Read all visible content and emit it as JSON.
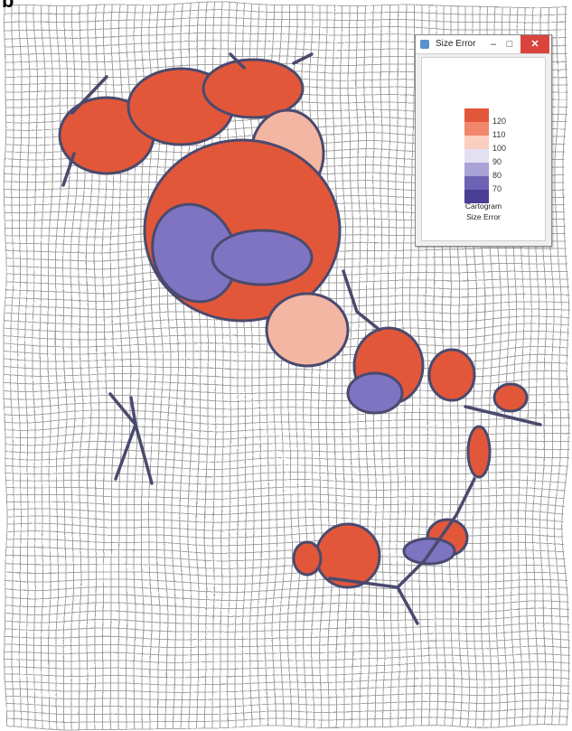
{
  "panel_label": "b",
  "legend_window": {
    "title": "Size Error",
    "minimize_glyph": "–",
    "maximize_glyph": "□",
    "close_glyph": "✕",
    "app_icon": "java-app-icon",
    "entries": [
      {
        "value": "120",
        "color": "#e2573a"
      },
      {
        "value": "110",
        "color": "#f0876a"
      },
      {
        "value": "100",
        "color": "#fbcfc0"
      },
      {
        "value": "90",
        "color": "#e4e0f2"
      },
      {
        "value": "80",
        "color": "#a9a2d6"
      },
      {
        "value": "70",
        "color": "#6e62b4"
      },
      {
        "value": "",
        "color": "#4a3e94"
      }
    ],
    "caption_line1": "Cartogram",
    "caption_line2": "Size Error"
  },
  "colors": {
    "grid": "#8c8c8c",
    "over": "#e2573a",
    "slight_over": "#f3b6a2",
    "under": "#7e74c2",
    "outline": "#4a4a6e"
  }
}
